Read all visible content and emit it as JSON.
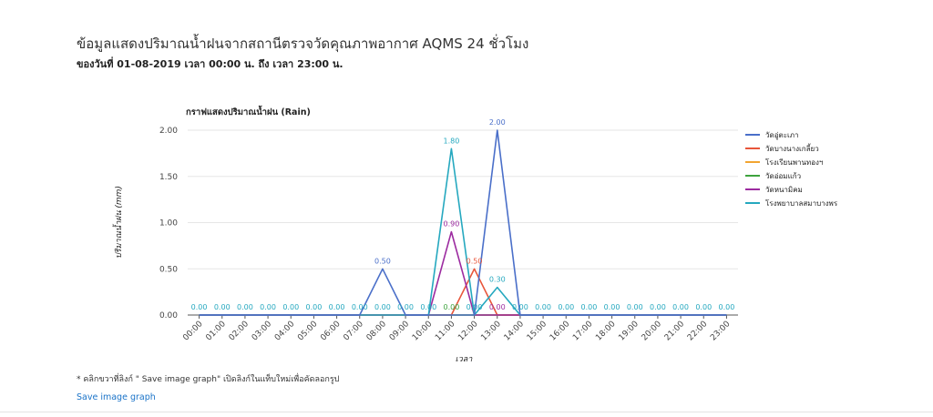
{
  "header": {
    "title": "ข้อมูลแสดงปริมาณน้ำฝนจากสถานีตรวจวัดคุณภาพอากาศ AQMS 24 ชั่วโมง",
    "subtitle": "ของวันที่ 01-08-2019 เวลา 00:00 น. ถึง เวลา 23:00 น."
  },
  "chart_data": {
    "type": "line",
    "title": "กราฟแสดงปริมาณน้ำฝน (Rain)",
    "xlabel": "เวลา",
    "ylabel": "ปริมาณน้ำฝน (mm)",
    "ylim": [
      0,
      2
    ],
    "yticks": [
      "0.00",
      "0.50",
      "1.00",
      "1.50",
      "2.00"
    ],
    "grid": true,
    "legend_position": "right",
    "categories": [
      "00:00",
      "01:00",
      "02:00",
      "03:00",
      "04:00",
      "05:00",
      "06:00",
      "07:00",
      "08:00",
      "09:00",
      "10:00",
      "11:00",
      "12:00",
      "13:00",
      "14:00",
      "15:00",
      "16:00",
      "17:00",
      "18:00",
      "19:00",
      "20:00",
      "21:00",
      "22:00",
      "23:00"
    ],
    "series": [
      {
        "name": "วัดอู่ตะเภา",
        "color": "#4a6fc9",
        "values": [
          0,
          0,
          0,
          0,
          0,
          0,
          0,
          0,
          0.5,
          0,
          0,
          0,
          0,
          2.0,
          0,
          0,
          0,
          0,
          0,
          0,
          0,
          0,
          0,
          0
        ]
      },
      {
        "name": "วัดบางนางเกลี้ยว",
        "color": "#e8553a",
        "values": [
          0,
          0,
          0,
          0,
          0,
          0,
          0,
          0,
          0,
          0,
          0,
          0,
          0.5,
          0,
          0,
          0,
          0,
          0,
          0,
          0,
          0,
          0,
          0,
          0
        ]
      },
      {
        "name": "โรงเรียนพานทองฯ",
        "color": "#f2a531",
        "values": [
          0,
          0,
          0,
          0,
          0,
          0,
          0,
          0,
          0,
          0,
          0,
          0,
          0,
          0,
          0,
          0,
          0,
          0,
          0,
          0,
          0,
          0,
          0,
          0
        ]
      },
      {
        "name": "วัดอ่อมแก้ว",
        "color": "#3ea33e",
        "values": [
          0,
          0,
          0,
          0,
          0,
          0,
          0,
          0,
          0,
          0,
          0,
          0,
          0,
          0,
          0,
          0,
          0,
          0,
          0,
          0,
          0,
          0,
          0,
          0
        ]
      },
      {
        "name": "วัดหนามิคม",
        "color": "#9c2ba0",
        "values": [
          0,
          0,
          0,
          0,
          0,
          0,
          0,
          0,
          0,
          0,
          0,
          0.9,
          0,
          0,
          0,
          0,
          0,
          0,
          0,
          0,
          0,
          0,
          0,
          0
        ]
      },
      {
        "name": "โรงพยาบาลสมาบางพร",
        "color": "#25a8bf",
        "values": [
          0,
          0,
          0,
          0,
          0,
          0,
          0,
          0,
          0,
          0,
          0,
          1.8,
          0,
          0.3,
          0,
          0,
          0,
          0,
          0,
          0,
          0,
          0,
          0,
          0
        ]
      }
    ],
    "data_labels": [
      {
        "cat": 0,
        "value": 0,
        "text": "0.00",
        "color": "#25a8bf"
      },
      {
        "cat": 1,
        "value": 0,
        "text": "0.00",
        "color": "#25a8bf"
      },
      {
        "cat": 2,
        "value": 0,
        "text": "0.00",
        "color": "#25a8bf"
      },
      {
        "cat": 3,
        "value": 0,
        "text": "0.00",
        "color": "#25a8bf"
      },
      {
        "cat": 4,
        "value": 0,
        "text": "0.00",
        "color": "#25a8bf"
      },
      {
        "cat": 5,
        "value": 0,
        "text": "0.00",
        "color": "#25a8bf"
      },
      {
        "cat": 6,
        "value": 0,
        "text": "0.00",
        "color": "#25a8bf"
      },
      {
        "cat": 7,
        "value": 0,
        "text": "0.00",
        "color": "#25a8bf"
      },
      {
        "cat": 8,
        "value": 0.5,
        "text": "0.50",
        "color": "#4a6fc9"
      },
      {
        "cat": 8,
        "value": 0,
        "text": "0.00",
        "color": "#25a8bf"
      },
      {
        "cat": 9,
        "value": 0,
        "text": "0.00",
        "color": "#25a8bf"
      },
      {
        "cat": 10,
        "value": 0,
        "text": "0.00",
        "color": "#25a8bf"
      },
      {
        "cat": 11,
        "value": 1.8,
        "text": "1.80",
        "color": "#25a8bf"
      },
      {
        "cat": 11,
        "value": 0.9,
        "text": "0.90",
        "color": "#9c2ba0"
      },
      {
        "cat": 11,
        "value": 0,
        "text": "0.00",
        "color": "#3ea33e"
      },
      {
        "cat": 12,
        "value": 0.5,
        "text": "0.50",
        "color": "#e8553a"
      },
      {
        "cat": 12,
        "value": 0,
        "text": "0.00",
        "color": "#25a8bf"
      },
      {
        "cat": 13,
        "value": 2.0,
        "text": "2.00",
        "color": "#4a6fc9"
      },
      {
        "cat": 13,
        "value": 0.3,
        "text": "0.30",
        "color": "#25a8bf"
      },
      {
        "cat": 13,
        "value": 0,
        "text": "0.00",
        "color": "#9c2ba0"
      },
      {
        "cat": 14,
        "value": 0,
        "text": "0.00",
        "color": "#25a8bf"
      },
      {
        "cat": 15,
        "value": 0,
        "text": "0.00",
        "color": "#25a8bf"
      },
      {
        "cat": 16,
        "value": 0,
        "text": "0.00",
        "color": "#25a8bf"
      },
      {
        "cat": 17,
        "value": 0,
        "text": "0.00",
        "color": "#25a8bf"
      },
      {
        "cat": 18,
        "value": 0,
        "text": "0.00",
        "color": "#25a8bf"
      },
      {
        "cat": 19,
        "value": 0,
        "text": "0.00",
        "color": "#25a8bf"
      },
      {
        "cat": 20,
        "value": 0,
        "text": "0.00",
        "color": "#25a8bf"
      },
      {
        "cat": 21,
        "value": 0,
        "text": "0.00",
        "color": "#25a8bf"
      },
      {
        "cat": 22,
        "value": 0,
        "text": "0.00",
        "color": "#25a8bf"
      },
      {
        "cat": 23,
        "value": 0,
        "text": "0.00",
        "color": "#25a8bf"
      }
    ]
  },
  "footer": {
    "note": "* คลิกขวาที่ลิงก์ \" Save image graph\" เปิดลิงก์ในแท็บใหม่เพื่อคัดลอกรูป",
    "save_link": "Save image graph"
  }
}
